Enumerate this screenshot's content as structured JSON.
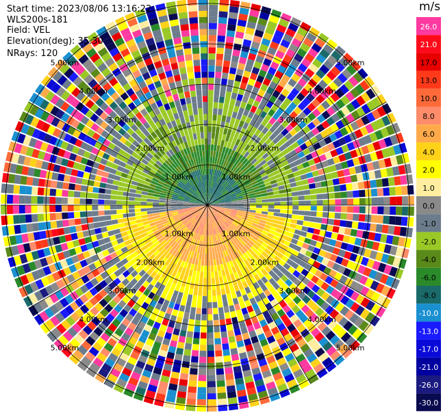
{
  "header": {
    "start_time": "Start time: 2023/08/06 13:16:22",
    "instrument": "WLS200s-181",
    "field": "Field: VEL",
    "elevation": "Elevation(deg): 35.30",
    "nrays": "NRays: 120"
  },
  "colorbar": {
    "unit": "m/s",
    "ticks": [
      "26.0",
      "21.0",
      "17.0",
      "13.0",
      "10.0",
      "8.0",
      "6.0",
      "4.0",
      "2.0",
      "1.0",
      "0.0",
      "-1.0",
      "-2.0",
      "-4.0",
      "-6.0",
      "-8.0",
      "-10.0",
      "-13.0",
      "-17.0",
      "-21.0",
      "-26.0",
      "-30.0"
    ],
    "colors": [
      "#ff3aa0",
      "#ff0a1a",
      "#e80000",
      "#ff3a1a",
      "#ff6a3a",
      "#ff8c6a",
      "#ffaa4a",
      "#ffd21a",
      "#ffff00",
      "#ffeea0",
      "#8a8a8a",
      "#6c7c8c",
      "#9ac826",
      "#5a8a1a",
      "#2a8a2a",
      "#1a6a6a",
      "#1a90d0",
      "#1a1aff",
      "#0a0ad8",
      "#0000a0",
      "#1a1a80",
      "#0a0a50"
    ]
  },
  "range_rings": {
    "labels": [
      "1.00km",
      "2.00km",
      "3.00km",
      "4.00km",
      "5.00km"
    ]
  },
  "scan": {
    "nrays": 120,
    "ngates": 34
  }
}
